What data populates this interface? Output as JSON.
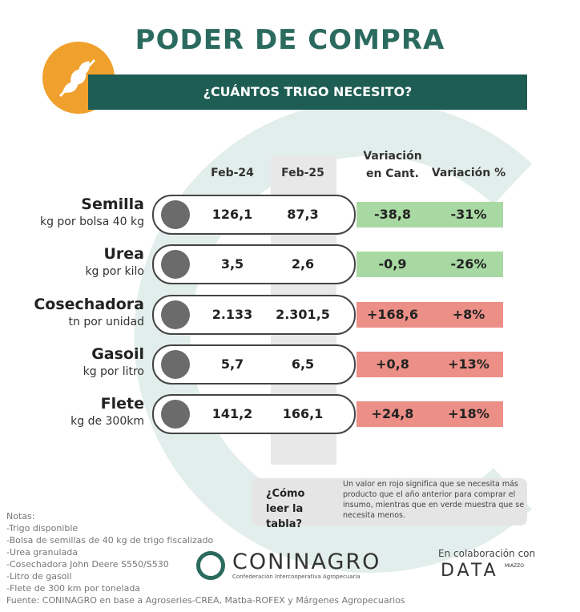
{
  "header": {
    "title": "PODER DE COMPRA",
    "subtitle": "¿CUÁNTOS TRIGO NECESITO?"
  },
  "table": {
    "columns": [
      "Feb-24",
      "Feb-25",
      "Variación en Cant.",
      "Variación %"
    ],
    "rows": [
      {
        "name": "Semilla",
        "unit": "kg por bolsa 40 kg",
        "cells": [
          "126,1",
          "87,3",
          "-38,8",
          "-31%"
        ],
        "color": "#a9d9a3"
      },
      {
        "name": "Urea",
        "unit": "kg por kilo",
        "cells": [
          "3,5",
          "2,6",
          "-0,9",
          "-26%"
        ],
        "color": "#a9d9a3"
      },
      {
        "name": "Cosechadora",
        "unit": "tn por unidad",
        "cells": [
          "2.133",
          "2.301,5",
          "+168,6",
          "+8%"
        ],
        "color": "#ec8f87"
      },
      {
        "name": "Gasoil",
        "unit": "kg por litro",
        "cells": [
          "5,7",
          "6,5",
          "+0,8",
          "+13%"
        ],
        "color": "#ec8f87"
      },
      {
        "name": "Flete",
        "unit": "kg de 300km",
        "cells": [
          "141,2",
          "166,1",
          "+24,8",
          "+18%"
        ],
        "color": "#ec8f87"
      }
    ]
  },
  "legend": {
    "question": "¿Cómo leer la tabla?",
    "text": "Un valor en rojo significa que se necesita más producto que el año anterior para comprar el insumo, mientras que en verde muestra que se necesita menos."
  },
  "notes": {
    "title": "Notas:",
    "items": [
      "-Trigo disponible",
      "-Bolsa de semillas de 40 kg de trigo fiscalizado",
      "-Urea granulada",
      "-Cosechadora John Deere S550/S530",
      "-Litro de gasoil",
      "-Flete de 300 km por tonelada"
    ],
    "source": "Fuente: CONINAGRO en base a Agroseries-CREA, Matba-ROFEX y Márgenes Agropecuarios"
  },
  "footer": {
    "logo": "CONINAGRO",
    "logo_sub": "Confederación Intercooperativa Agropecuaria",
    "collab": "En colaboración con",
    "partner": "DATA",
    "partner_sub": "MIAZZO"
  }
}
